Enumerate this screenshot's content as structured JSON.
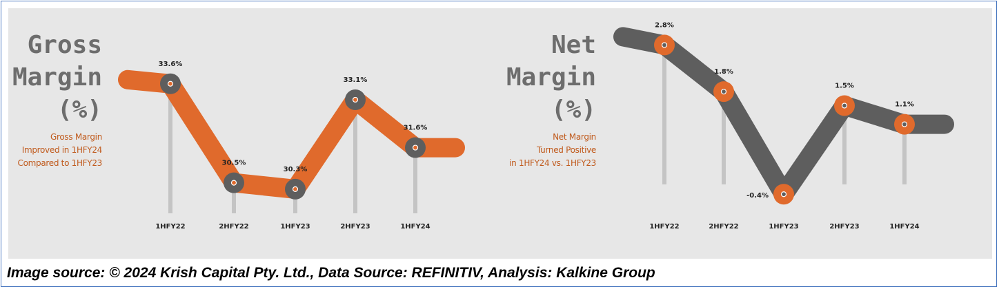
{
  "source_text": "Image source: © 2024 Krish Capital Pty. Ltd., Data Source: REFINITIV, Analysis: Kalkine Group",
  "gross": {
    "title_lines": [
      "Gross",
      "Margin",
      "(%)"
    ],
    "subtitle_lines": [
      "Gross Margin",
      "Improved in 1HFY24",
      "Compared to 1HFY23"
    ]
  },
  "net": {
    "title_lines": [
      "Net",
      "Margin",
      "(%)"
    ],
    "subtitle_lines": [
      "Net Margin",
      "Turned Positive",
      "in 1HFY24 vs. 1HFY23"
    ]
  },
  "colors": {
    "orange": "#e06a2c",
    "dark_gray": "#5e5e5e",
    "stem": "#c4c4c4",
    "title_gray": "#6d6d6d",
    "subtitle_orange": "#c05a1c",
    "background": "#e7e7e7"
  },
  "chart_data": [
    {
      "type": "line",
      "title": "Gross Margin (%)",
      "categories": [
        "1HFY22",
        "2HFY22",
        "1HFY23",
        "2HFY23",
        "1HFY24"
      ],
      "values": [
        33.6,
        30.5,
        30.3,
        33.1,
        31.6
      ],
      "labels": [
        "33.6%",
        "30.5%",
        "30.3%",
        "33.1%",
        "31.6%"
      ],
      "line_color": "#e06a2c",
      "marker_color": "#5e5e5e",
      "ylim": [
        29.5,
        34.5
      ],
      "grid": false
    },
    {
      "type": "line",
      "title": "Net Margin (%)",
      "categories": [
        "1HFY22",
        "2HFY22",
        "1HFY23",
        "2HFY23",
        "1HFY24"
      ],
      "values": [
        2.8,
        1.8,
        -0.4,
        1.5,
        1.1
      ],
      "labels": [
        "2.8%",
        "1.8%",
        "-0.4%",
        "1.5%",
        "1.1%"
      ],
      "line_color": "#5e5e5e",
      "marker_color": "#e06a2c",
      "ylim": [
        -0.5,
        3.5
      ],
      "grid": false
    }
  ]
}
